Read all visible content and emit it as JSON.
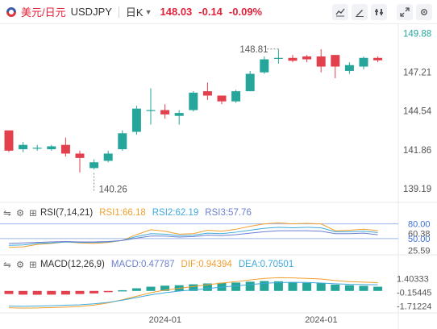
{
  "header": {
    "pair": "美元/日元",
    "symbol": "USDJPY",
    "period": "日K",
    "price": "148.03",
    "change": "-0.14",
    "change_pct": "-0.09%"
  },
  "tools": [
    "chart-mode-icon",
    "draw-icon",
    "settings-icon",
    "compare-icon",
    "expand-icon"
  ],
  "colors": {
    "up": "#26a69a",
    "down": "#e2404d",
    "rsi1": "#f0a030",
    "rsi2": "#3fa9d8",
    "rsi3": "#6c7fd0",
    "dif": "#f0a030",
    "dea": "#3fa9d8"
  },
  "rsi_header": {
    "name": "RSI(7,14,21)",
    "rsi1": "RSI1:66.18",
    "rsi2": "RSI2:62.19",
    "rsi3": "RSI3:57.76"
  },
  "macd_header": {
    "name": "MACD(12,26,9)",
    "macd": "MACD:0.47787",
    "dif": "DIF:0.94394",
    "dea": "DEA:0.70501"
  },
  "chart_data": [
    {
      "type": "candlestick",
      "title": "",
      "y_ticks": [
        "149.88",
        "147.21",
        "144.54",
        "141.86",
        "139.19"
      ],
      "y_tick_values": [
        149.88,
        147.21,
        144.54,
        141.86,
        139.19
      ],
      "ylim": [
        138.4,
        150.3
      ],
      "x_ticks": [
        "2024-01",
        "2024-01"
      ],
      "x_tick_index": [
        11,
        22
      ],
      "annotations": [
        {
          "label": "148.81",
          "index": 19,
          "value": 148.81
        },
        {
          "label": "140.26",
          "index": 6,
          "value": 140.26
        }
      ],
      "candles": [
        {
          "o": 143.2,
          "h": 143.2,
          "c": 141.8,
          "l": 141.7
        },
        {
          "o": 141.9,
          "h": 142.4,
          "c": 142.2,
          "l": 141.7
        },
        {
          "o": 142.0,
          "h": 142.2,
          "c": 142.0,
          "l": 141.8
        },
        {
          "o": 141.9,
          "h": 142.2,
          "c": 142.1,
          "l": 141.8
        },
        {
          "o": 142.2,
          "h": 142.7,
          "c": 141.6,
          "l": 141.4
        },
        {
          "o": 141.6,
          "h": 141.8,
          "c": 141.3,
          "l": 140.3
        },
        {
          "o": 140.6,
          "h": 141.2,
          "c": 141.0,
          "l": 140.5
        },
        {
          "o": 141.1,
          "h": 141.8,
          "c": 141.6,
          "l": 141.0
        },
        {
          "o": 141.9,
          "h": 143.2,
          "c": 143.0,
          "l": 141.8
        },
        {
          "o": 143.1,
          "h": 144.9,
          "c": 144.7,
          "l": 142.9
        },
        {
          "o": 144.6,
          "h": 146.1,
          "c": 144.6,
          "l": 143.6
        },
        {
          "o": 144.6,
          "h": 145.0,
          "c": 144.3,
          "l": 144.0
        },
        {
          "o": 144.2,
          "h": 144.6,
          "c": 144.4,
          "l": 143.6
        },
        {
          "o": 144.6,
          "h": 145.9,
          "c": 145.8,
          "l": 144.5
        },
        {
          "o": 145.9,
          "h": 146.5,
          "c": 145.6,
          "l": 145.3
        },
        {
          "o": 145.6,
          "h": 145.6,
          "c": 145.2,
          "l": 145.0
        },
        {
          "o": 145.2,
          "h": 146.0,
          "c": 145.9,
          "l": 145.1
        },
        {
          "o": 145.9,
          "h": 147.3,
          "c": 147.1,
          "l": 145.9
        },
        {
          "o": 147.2,
          "h": 148.3,
          "c": 148.1,
          "l": 147.1
        },
        {
          "o": 148.2,
          "h": 148.81,
          "c": 148.2,
          "l": 147.8
        },
        {
          "o": 148.2,
          "h": 148.4,
          "c": 148.0,
          "l": 147.9
        },
        {
          "o": 148.3,
          "h": 148.4,
          "c": 148.1,
          "l": 147.9
        },
        {
          "o": 148.3,
          "h": 148.8,
          "c": 147.6,
          "l": 147.2
        },
        {
          "o": 148.4,
          "h": 148.4,
          "c": 147.6,
          "l": 146.8
        },
        {
          "o": 147.3,
          "h": 147.9,
          "c": 147.7,
          "l": 147.1
        },
        {
          "o": 147.6,
          "h": 148.3,
          "c": 148.2,
          "l": 147.4
        },
        {
          "o": 148.2,
          "h": 148.3,
          "c": 148.03,
          "l": 147.9
        }
      ]
    },
    {
      "type": "line",
      "title": "RSI(7,14,21)",
      "y_ticks": [
        "80.00",
        "60.38",
        "50.00",
        "25.59"
      ],
      "y_tick_values": [
        80.0,
        60.38,
        50.0,
        25.59
      ],
      "ylim": [
        20,
        86
      ],
      "series": [
        {
          "name": "RSI1",
          "values": [
            32,
            33,
            38,
            40,
            43,
            41,
            40,
            42,
            46,
            58,
            68,
            65,
            59,
            60,
            67,
            65,
            69,
            75,
            80,
            82,
            80,
            81,
            80,
            66,
            67,
            69,
            66.18
          ]
        },
        {
          "name": "RSI2",
          "values": [
            36,
            37,
            40,
            41,
            43,
            42,
            42,
            43,
            46,
            54,
            60,
            59,
            56,
            57,
            61,
            60,
            63,
            67,
            71,
            73,
            72,
            73,
            72,
            64,
            64,
            65,
            62.19
          ]
        },
        {
          "name": "RSI3",
          "values": [
            40,
            41,
            42,
            43,
            44,
            43,
            43,
            44,
            46,
            51,
            55,
            55,
            53,
            54,
            57,
            56,
            58,
            61,
            64,
            66,
            66,
            66,
            65,
            60,
            60,
            61,
            57.76
          ]
        }
      ]
    },
    {
      "type": "bar",
      "title": "MACD(12,26,9)",
      "y_ticks": [
        "1.40333",
        "-0.15445",
        "-1.71224"
      ],
      "y_tick_values": [
        1.40333,
        -0.15445,
        -1.71224
      ],
      "ylim": [
        -2.3,
        1.9
      ],
      "series": [
        {
          "name": "MACD",
          "values": [
            -0.35,
            -0.42,
            -0.43,
            -0.42,
            -0.41,
            -0.35,
            -0.28,
            -0.12,
            0.08,
            0.3,
            0.48,
            0.6,
            0.65,
            0.75,
            0.85,
            0.92,
            0.95,
            1.05,
            1.12,
            1.09,
            1.0,
            0.92,
            0.9,
            0.72,
            0.65,
            0.58,
            0.47787
          ]
        },
        {
          "name": "DIF",
          "values": [
            -1.9,
            -1.95,
            -1.92,
            -1.88,
            -1.83,
            -1.75,
            -1.6,
            -1.35,
            -1.0,
            -0.6,
            -0.2,
            0.1,
            0.3,
            0.5,
            0.7,
            0.9,
            1.05,
            1.25,
            1.42,
            1.5,
            1.48,
            1.42,
            1.35,
            1.18,
            1.05,
            1.0,
            0.94394
          ]
        },
        {
          "name": "DEA",
          "values": [
            -1.72,
            -1.74,
            -1.71,
            -1.67,
            -1.62,
            -1.57,
            -1.46,
            -1.29,
            -1.04,
            -0.75,
            -0.44,
            -0.2,
            -0.02,
            0.12,
            0.27,
            0.44,
            0.57,
            0.72,
            0.86,
            0.95,
            0.98,
            0.96,
            0.9,
            0.82,
            0.75,
            0.72,
            0.70501
          ]
        }
      ]
    }
  ]
}
